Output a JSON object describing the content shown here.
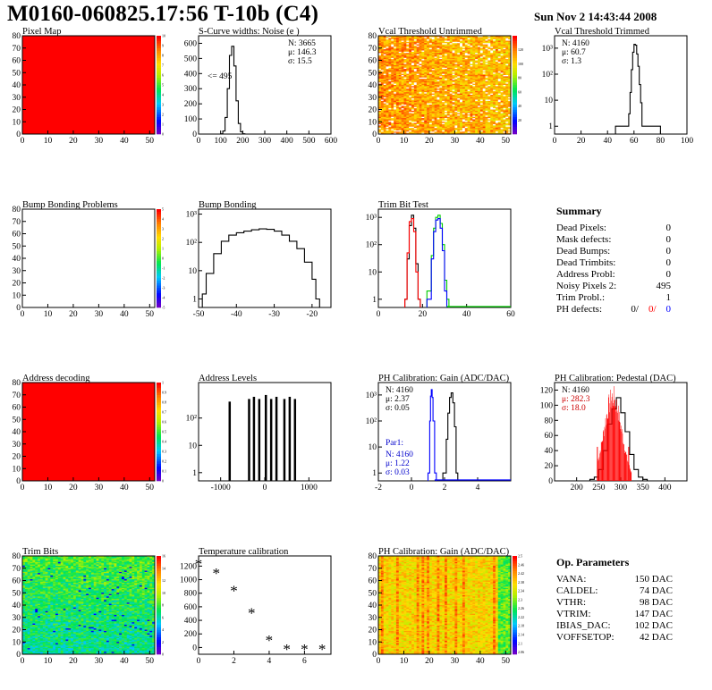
{
  "header": {
    "title": "M0160-060825.17:56 T-10b (C4)",
    "datetime": "Sun Nov  2 14:43:44 2008"
  },
  "chart_data": [
    {
      "id": "pixel-map",
      "type": "heatmap",
      "title": "Pixel Map",
      "xlim": [
        0,
        52
      ],
      "ylim": [
        0,
        80
      ],
      "xticks": [
        0,
        10,
        20,
        30,
        40,
        50
      ],
      "yticks": [
        0,
        10,
        20,
        30,
        40,
        50,
        60,
        70,
        80
      ],
      "zlim": [
        0,
        10
      ],
      "zticks": [
        0,
        1,
        2,
        3,
        4,
        5,
        6,
        7,
        8,
        9,
        10
      ],
      "fill": "#ff0000"
    },
    {
      "id": "scurve-noise",
      "type": "line",
      "title": "S-Curve widths: Noise (e )",
      "xlim": [
        0,
        600
      ],
      "ylim": [
        0,
        650
      ],
      "xticks": [
        0,
        100,
        200,
        300,
        400,
        500,
        600
      ],
      "yticks": [
        0,
        100,
        200,
        300,
        400,
        500,
        600
      ],
      "x": [
        100,
        110,
        120,
        130,
        140,
        150,
        160,
        170,
        180,
        190,
        200
      ],
      "y": [
        2,
        20,
        110,
        300,
        520,
        580,
        450,
        220,
        70,
        15,
        2
      ],
      "stats": [
        "N: 3665",
        "μ: 146.3",
        "σ: 15.5"
      ],
      "annotation": "<= 495"
    },
    {
      "id": "vcal-untrimmed",
      "type": "heatmap",
      "title": "Vcal Threshold Untrimmed",
      "xlim": [
        0,
        52
      ],
      "ylim": [
        0,
        80
      ],
      "xticks": [
        0,
        10,
        20,
        30,
        40,
        50
      ],
      "yticks": [
        0,
        10,
        20,
        30,
        40,
        50,
        60,
        70,
        80
      ],
      "zlim": [
        0,
        140
      ],
      "zticks": [
        20,
        40,
        60,
        80,
        100,
        120
      ]
    },
    {
      "id": "vcal-trimmed",
      "type": "line",
      "title": "Vcal Threshold Trimmed",
      "xlim": [
        0,
        100
      ],
      "ylim": [
        0.5,
        3000
      ],
      "yscale": "log",
      "xticks": [
        0,
        20,
        40,
        60,
        80,
        100
      ],
      "ytick_labels": [
        "1",
        "10",
        "10²",
        "10³"
      ],
      "ytick_values": [
        1,
        10,
        100,
        1000
      ],
      "x": [
        46,
        54,
        56,
        57,
        58,
        59,
        60,
        61,
        62,
        63,
        64,
        65,
        66,
        73
      ],
      "y": [
        1,
        1,
        3,
        20,
        150,
        700,
        1400,
        1300,
        600,
        200,
        40,
        8,
        1,
        1
      ],
      "stats": [
        "N: 4160",
        "μ: 60.7",
        "σ:  1.3"
      ]
    },
    {
      "id": "bump-bonding-problems",
      "type": "heatmap",
      "title": "Bump Bonding Problems",
      "xlim": [
        0,
        52
      ],
      "ylim": [
        0,
        80
      ],
      "xticks": [
        0,
        10,
        20,
        30,
        40,
        50
      ],
      "yticks": [
        0,
        10,
        20,
        30,
        40,
        50,
        60,
        70,
        80
      ],
      "zlim": [
        -5,
        5
      ],
      "zticks": [
        -5,
        -4,
        -3,
        -2,
        -1,
        0,
        1,
        2,
        3,
        4,
        5
      ],
      "fill": "#ffffff"
    },
    {
      "id": "bump-bonding",
      "type": "line",
      "title": "Bump Bonding",
      "xlim": [
        -50,
        -15
      ],
      "ylim": [
        0.5,
        1500
      ],
      "yscale": "log",
      "xticks": [
        -50,
        -40,
        -30,
        -20
      ],
      "ytick_labels": [
        "1",
        "10",
        "10²",
        "10³"
      ],
      "ytick_values": [
        1,
        10,
        100,
        1000
      ],
      "x": [
        -49,
        -48,
        -46,
        -44,
        -42,
        -40,
        -38,
        -36,
        -34,
        -32,
        -30,
        -28,
        -26,
        -24,
        -22,
        -20,
        -19
      ],
      "y": [
        1.5,
        8,
        40,
        110,
        180,
        220,
        250,
        280,
        300,
        290,
        250,
        180,
        110,
        60,
        20,
        5,
        1
      ]
    },
    {
      "id": "trim-bit-test",
      "type": "line",
      "title": "Trim Bit Test",
      "xlim": [
        0,
        60
      ],
      "ylim": [
        0.5,
        2000
      ],
      "yscale": "log",
      "xticks": [
        0,
        20,
        40,
        60
      ],
      "ytick_labels": [
        "1",
        "10",
        "10²",
        "10³"
      ],
      "ytick_values": [
        1,
        10,
        100,
        1000
      ],
      "series": [
        {
          "color": "#000000",
          "x": [
            12,
            13,
            14,
            15,
            16,
            17,
            18
          ],
          "y": [
            1,
            30,
            500,
            1200,
            400,
            20,
            1
          ]
        },
        {
          "color": "#ff0000",
          "x": [
            12,
            13,
            14,
            15,
            16,
            17,
            18
          ],
          "y": [
            1,
            50,
            700,
            900,
            300,
            10,
            1
          ]
        },
        {
          "color": "#00cc00",
          "x": [
            22,
            24,
            25,
            26,
            27,
            28,
            29,
            30,
            31
          ],
          "y": [
            2,
            40,
            400,
            1000,
            1200,
            600,
            100,
            5,
            1
          ]
        },
        {
          "color": "#0000ff",
          "x": [
            22,
            24,
            25,
            26,
            27,
            28,
            29,
            30
          ],
          "y": [
            1,
            30,
            300,
            800,
            900,
            400,
            60,
            2
          ]
        }
      ]
    },
    {
      "id": "address-decoding",
      "type": "heatmap",
      "title": "Address decoding",
      "xlim": [
        0,
        52
      ],
      "ylim": [
        0,
        80
      ],
      "xticks": [
        0,
        10,
        20,
        30,
        40,
        50
      ],
      "yticks": [
        0,
        10,
        20,
        30,
        40,
        50,
        60,
        70,
        80
      ],
      "zlim": [
        0,
        1
      ],
      "zticks": [
        0,
        0.1,
        0.2,
        0.3,
        0.4,
        0.5,
        0.6,
        0.7,
        0.8,
        0.9,
        1
      ],
      "fill": "#ff0000"
    },
    {
      "id": "address-levels",
      "type": "bar",
      "title": "Address Levels",
      "xlim": [
        -1500,
        1500
      ],
      "ylim": [
        0.5,
        2000
      ],
      "yscale": "log",
      "xticks": [
        -1000,
        0,
        1000
      ],
      "ytick_labels": [
        "1",
        "10",
        "10²"
      ],
      "ytick_values": [
        1,
        10,
        100
      ],
      "x": [
        -800,
        -360,
        -250,
        -130,
        20,
        140,
        260,
        440,
        560,
        680
      ],
      "y": [
        400,
        500,
        600,
        500,
        700,
        500,
        600,
        500,
        600,
        500
      ]
    },
    {
      "id": "ph-gain-hist",
      "type": "line",
      "title": "PH Calibration: Gain (ADC/DAC)",
      "xlim": [
        -2,
        6
      ],
      "ylim": [
        0.5,
        3000
      ],
      "yscale": "log",
      "xticks": [
        -2,
        0,
        2,
        4
      ],
      "ytick_labels": [
        "1",
        "10",
        "10²",
        "10³"
      ],
      "ytick_values": [
        1,
        10,
        100,
        1000
      ],
      "series": [
        {
          "color": "#000000",
          "x": [
            1.9,
            2.1,
            2.2,
            2.3,
            2.4,
            2.5,
            2.6,
            2.7
          ],
          "y": [
            1,
            20,
            200,
            800,
            1200,
            500,
            60,
            1
          ]
        },
        {
          "color": "#0000ff",
          "x": [
            1.0,
            1.1,
            1.15,
            1.2,
            1.25,
            1.3,
            1.4
          ],
          "y": [
            1,
            100,
            900,
            1600,
            800,
            100,
            1
          ]
        }
      ],
      "stats": [
        "N: 4160",
        "μ: 2.37",
        "σ: 0.05"
      ],
      "par_label": "Par1:",
      "par_stats": [
        "N: 4160",
        "μ: 1.22",
        "σ: 0.03"
      ]
    },
    {
      "id": "ph-pedestal",
      "type": "line",
      "title": "PH Calibration: Pedestal (DAC)",
      "xlim": [
        150,
        450
      ],
      "ylim": [
        0,
        130
      ],
      "xticks": [
        200,
        250,
        300,
        350,
        400
      ],
      "yticks": [
        0,
        20,
        40,
        60,
        80,
        100,
        120
      ],
      "x": [
        230,
        240,
        250,
        260,
        270,
        280,
        290,
        300,
        310,
        320,
        330,
        340,
        350
      ],
      "y": [
        2,
        5,
        15,
        40,
        75,
        95,
        110,
        90,
        65,
        35,
        15,
        5,
        2
      ],
      "stats": [
        "N: 4160",
        "μ: 282.3",
        "σ: 18.0"
      ]
    },
    {
      "id": "trim-bits",
      "type": "heatmap",
      "title": "Trim Bits",
      "xlim": [
        0,
        52
      ],
      "ylim": [
        0,
        80
      ],
      "xticks": [
        0,
        10,
        20,
        30,
        40,
        50
      ],
      "yticks": [
        0,
        10,
        20,
        30,
        40,
        50,
        60,
        70,
        80
      ],
      "zlim": [
        0,
        16
      ],
      "zticks": [
        0,
        2,
        4,
        6,
        8,
        10,
        12,
        14,
        16
      ]
    },
    {
      "id": "temperature-calibration",
      "type": "scatter",
      "title": "Temperature calibration",
      "xlim": [
        0,
        7.5
      ],
      "ylim": [
        -100,
        1350
      ],
      "xticks": [
        0,
        2,
        4,
        6
      ],
      "yticks": [
        0,
        200,
        400,
        600,
        800,
        1000,
        1200
      ],
      "x": [
        0,
        1,
        2,
        3,
        4,
        5,
        6,
        7
      ],
      "y": [
        1240,
        1100,
        840,
        510,
        110,
        -20,
        -20,
        -20
      ]
    },
    {
      "id": "ph-gain-map",
      "type": "heatmap",
      "title": "PH Calibration: Gain (ADC/DAC)",
      "xlim": [
        0,
        52
      ],
      "ylim": [
        0,
        80
      ],
      "xticks": [
        0,
        10,
        20,
        30,
        40,
        50
      ],
      "yticks": [
        0,
        10,
        20,
        30,
        40,
        50,
        60,
        70,
        80
      ],
      "zlim": [
        2.05,
        2.5
      ],
      "zticks": [
        2.06,
        2.1,
        2.14,
        2.18,
        2.22,
        2.26,
        2.3,
        2.34,
        2.38,
        2.42,
        2.46,
        2.5
      ]
    }
  ],
  "summary": {
    "title": "Summary",
    "rows": [
      {
        "label": "Dead Pixels:",
        "value": "0"
      },
      {
        "label": "Mask defects:",
        "value": "0"
      },
      {
        "label": "Dead Bumps:",
        "value": "0"
      },
      {
        "label": "Dead Trimbits:",
        "value": "0"
      },
      {
        "label": "Address Probl:",
        "value": "0"
      },
      {
        "label": "Noisy Pixels 2:",
        "value": "495"
      },
      {
        "label": "Trim Probl.:",
        "value": "1"
      }
    ],
    "ph_label": "PH defects:",
    "ph_values": [
      "0/",
      "0/",
      "0"
    ],
    "ph_colors": [
      "#000000",
      "#ff0000",
      "#0000ff"
    ]
  },
  "op_params": {
    "title": "Op. Parameters",
    "rows": [
      {
        "label": "VANA:",
        "value": "150 DAC"
      },
      {
        "label": "CALDEL:",
        "value": "74 DAC"
      },
      {
        "label": "VTHR:",
        "value": "98 DAC"
      },
      {
        "label": "VTRIM:",
        "value": "147 DAC"
      },
      {
        "label": "IBIAS_DAC:",
        "value": "102 DAC"
      },
      {
        "label": "VOFFSETOP:",
        "value": "42 DAC"
      }
    ]
  }
}
